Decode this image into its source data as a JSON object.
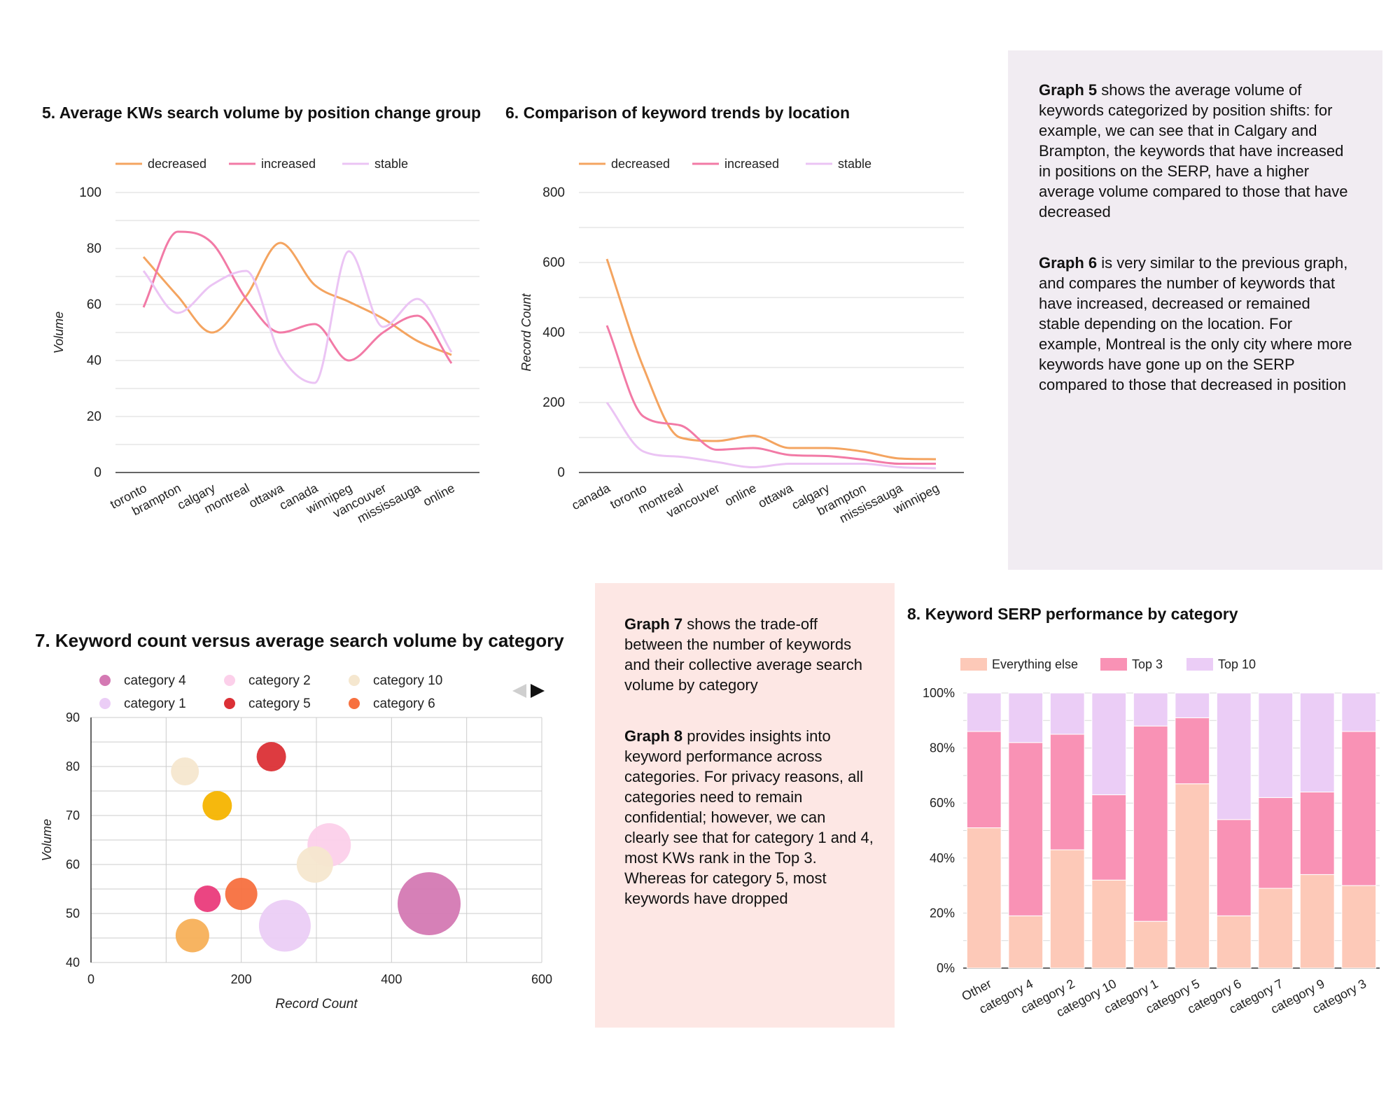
{
  "colors": {
    "decreased": "#f4a460",
    "increased": "#f27aa6",
    "stable": "#ebc4f4",
    "note_purple_bg": "#f1ecf2",
    "note_pink_bg": "#fde7e4"
  },
  "icons": {
    "prev": "triangle-left-icon",
    "next": "triangle-right-icon"
  },
  "chart5": {
    "title": "5. Average KWs search volume by position change group",
    "ylabel": "Volume"
  },
  "chart6": {
    "title": "6. Comparison of keyword trends by location",
    "ylabel": "Record Count"
  },
  "chart7": {
    "title": "7. Keyword count versus average search volume by category",
    "ylabel": "Volume",
    "xlabel": "Record Count"
  },
  "chart8": {
    "title": "8. Keyword SERP performance by category"
  },
  "notes": {
    "g5_bold": "Graph 5",
    "g5_text": " shows the average volume of keywords categorized by position shifts: for example, we can see that in Calgary and Brampton, the keywords that have increased in positions on the SERP, have a higher average volume compared to those that have decreased",
    "g6_bold": "Graph 6",
    "g6_text": " is very similar to the previous graph, and compares the number of keywords that have increased, decreased or remained stable depending on the location. For example, Montreal is the only city where more keywords have gone up on the SERP compared to those that decreased in position",
    "g7_bold": "Graph 7",
    "g7_text": " shows the trade-off between the number of keywords and their collective average search volume by category",
    "g8_bold": "Graph 8",
    "g8_text": " provides insights into keyword performance across categories. For privacy reasons, all categories need to remain confidential; however, we can clearly see that for category 1 and 4,  most KWs rank in the Top 3. Whereas for category 5, most keywords have dropped"
  },
  "chart_data": [
    {
      "type": "line",
      "title": "5. Average KWs search volume by position change group",
      "ylabel": "Volume",
      "xlabel": "",
      "categories": [
        "toronto",
        "brampton",
        "calgary",
        "montreal",
        "ottawa",
        "canada",
        "winnipeg",
        "vancouver",
        "mississauga",
        "online"
      ],
      "ylim": [
        0,
        100
      ],
      "yticks": [
        0,
        20,
        40,
        60,
        80,
        100
      ],
      "grid": true,
      "legend": "top-left",
      "series": [
        {
          "name": "decreased",
          "color": "#f4a460",
          "values": [
            77,
            63,
            50,
            63,
            82,
            67,
            61,
            55,
            47,
            42
          ]
        },
        {
          "name": "increased",
          "color": "#f27aa6",
          "values": [
            59,
            86,
            82,
            62,
            50,
            53,
            40,
            50,
            56,
            39
          ]
        },
        {
          "name": "stable",
          "color": "#ebc4f4",
          "values": [
            72,
            57,
            67,
            72,
            42,
            32,
            79,
            52,
            62,
            43
          ]
        }
      ]
    },
    {
      "type": "line",
      "title": "6. Comparison of keyword trends by location",
      "ylabel": "Record Count",
      "xlabel": "",
      "categories": [
        "canada",
        "toronto",
        "montreal",
        "vancouver",
        "online",
        "ottawa",
        "calgary",
        "brampton",
        "mississauga",
        "winnipeg"
      ],
      "ylim": [
        0,
        800
      ],
      "yticks": [
        0,
        200,
        400,
        600,
        800
      ],
      "grid": true,
      "legend": "top-left",
      "series": [
        {
          "name": "decreased",
          "color": "#f4a460",
          "values": [
            610,
            300,
            100,
            90,
            105,
            70,
            70,
            60,
            40,
            38
          ]
        },
        {
          "name": "increased",
          "color": "#f27aa6",
          "values": [
            420,
            160,
            135,
            65,
            70,
            50,
            47,
            37,
            25,
            25
          ]
        },
        {
          "name": "stable",
          "color": "#ebc4f4",
          "values": [
            200,
            60,
            45,
            30,
            15,
            25,
            25,
            25,
            15,
            12
          ]
        }
      ]
    },
    {
      "type": "scatter",
      "title": "7. Keyword count versus average search volume by category",
      "xlabel": "Record Count",
      "ylabel": "Volume",
      "xlim": [
        0,
        600
      ],
      "ylim": [
        40,
        90
      ],
      "xticks": [
        0,
        200,
        400,
        600
      ],
      "yticks": [
        40,
        50,
        60,
        70,
        80,
        90
      ],
      "grid": true,
      "legend": "top",
      "legend_entries": [
        {
          "name": "category 4",
          "color": "#d479b3"
        },
        {
          "name": "category 2",
          "color": "#fcd0ea"
        },
        {
          "name": "category 10",
          "color": "#f5e7cf"
        },
        {
          "name": "category 1",
          "color": "#ebcdf6"
        },
        {
          "name": "category 5",
          "color": "#db3036"
        },
        {
          "name": "category 6",
          "color": "#f7703f"
        }
      ],
      "points": [
        {
          "x": 450,
          "y": 52,
          "r": 45,
          "color": "#d479b3"
        },
        {
          "x": 258,
          "y": 47.5,
          "r": 37,
          "color": "#ebcdf6"
        },
        {
          "x": 317,
          "y": 64,
          "r": 31,
          "color": "#fcd0ea"
        },
        {
          "x": 298,
          "y": 60,
          "r": 26,
          "color": "#f5e7cf"
        },
        {
          "x": 240,
          "y": 82,
          "r": 21,
          "color": "#db3036"
        },
        {
          "x": 125,
          "y": 79,
          "r": 20,
          "color": "#f5e7cf"
        },
        {
          "x": 168,
          "y": 72,
          "r": 21,
          "color": "#f6b400"
        },
        {
          "x": 200,
          "y": 54,
          "r": 23,
          "color": "#f7703f"
        },
        {
          "x": 155,
          "y": 53,
          "r": 19,
          "color": "#ea3b7b"
        },
        {
          "x": 135,
          "y": 45.5,
          "r": 24,
          "color": "#f7b059"
        }
      ]
    },
    {
      "type": "bar",
      "stacked": true,
      "title": "8. Keyword SERP performance by category",
      "categories": [
        "Other",
        "category 4",
        "category 2",
        "category 10",
        "category 1",
        "category 5",
        "category 6",
        "category 7",
        "category 9",
        "category 3"
      ],
      "ylim": [
        0,
        100
      ],
      "yticks": [
        "0%",
        "20%",
        "40%",
        "60%",
        "80%",
        "100%"
      ],
      "legend": "top-left",
      "series": [
        {
          "name": "Everything else",
          "color": "#fdc9b8",
          "values": [
            51,
            19,
            43,
            32,
            17,
            67,
            19,
            29,
            34,
            30
          ]
        },
        {
          "name": "Top 3",
          "color": "#f992b5",
          "values": [
            35,
            63,
            42,
            31,
            71,
            24,
            35,
            33,
            30,
            56
          ]
        },
        {
          "name": "Top 10",
          "color": "#ebcdf6",
          "values": [
            14,
            18,
            15,
            37,
            12,
            9,
            46,
            38,
            36,
            14
          ]
        }
      ]
    }
  ]
}
